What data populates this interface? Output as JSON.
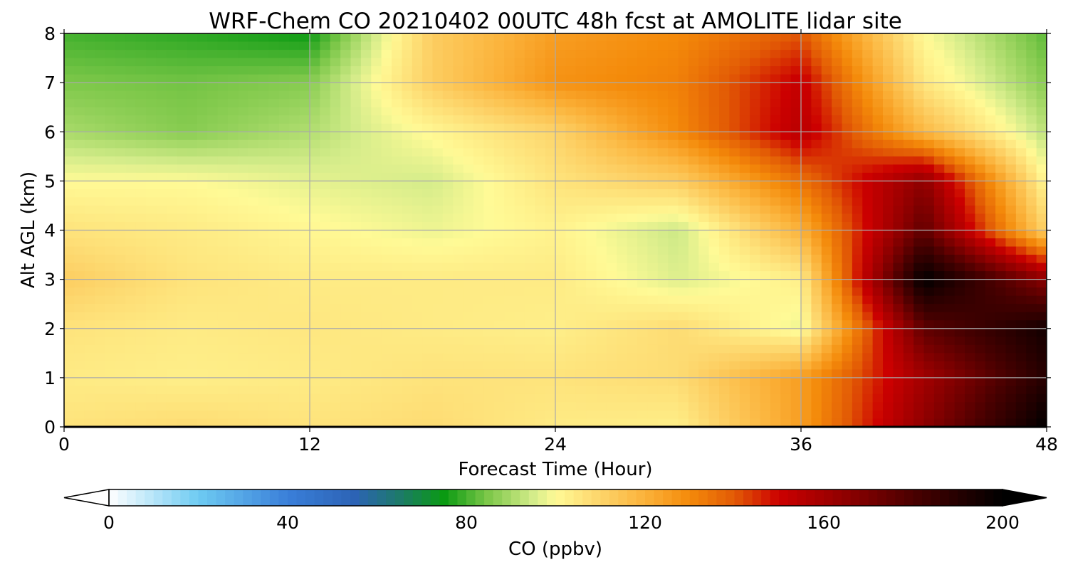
{
  "chart_data": {
    "type": "heatmap",
    "title": "WRF-Chem CO  20210402 00UTC 48h fcst at AMOLITE lidar site",
    "xlabel": "Forecast Time (Hour)",
    "ylabel": "Alt AGL (km)",
    "xlim": [
      0,
      48
    ],
    "ylim": [
      0,
      8
    ],
    "x_ticks": [
      "0",
      "12",
      "24",
      "36",
      "48"
    ],
    "y_ticks": [
      "0",
      "1",
      "2",
      "3",
      "4",
      "5",
      "6",
      "7",
      "8"
    ],
    "grid": true,
    "x": [
      0,
      6,
      12,
      18,
      24,
      30,
      36,
      42,
      48
    ],
    "y": [
      0,
      1,
      2,
      3,
      4,
      5,
      6,
      7,
      8
    ],
    "z": [
      [
        106,
        108,
        106,
        108,
        104,
        103,
        125,
        165,
        200
      ],
      [
        104,
        103,
        104,
        106,
        106,
        108,
        125,
        160,
        190
      ],
      [
        106,
        104,
        105,
        104,
        103,
        108,
        98,
        175,
        195
      ],
      [
        112,
        106,
        104,
        104,
        104,
        96,
        103,
        200,
        165
      ],
      [
        106,
        104,
        101,
        98,
        102,
        94,
        120,
        175,
        110
      ],
      [
        100,
        100,
        97,
        95,
        106,
        112,
        135,
        165,
        100
      ],
      [
        90,
        86,
        91,
        101,
        110,
        130,
        155,
        118,
        92
      ],
      [
        85,
        84,
        86,
        112,
        128,
        132,
        152,
        105,
        86
      ],
      [
        80,
        78,
        75,
        112,
        125,
        130,
        140,
        100,
        82
      ]
    ],
    "colorbar": {
      "label": "CO  (ppbv)",
      "ticks": [
        "0",
        "40",
        "80",
        "120",
        "160",
        "200"
      ],
      "range": [
        0,
        200
      ],
      "extend": "both",
      "stops": [
        {
          "v": 0,
          "c": "#ffffff"
        },
        {
          "v": 20,
          "c": "#6ecbf2"
        },
        {
          "v": 40,
          "c": "#3a7fd9"
        },
        {
          "v": 55,
          "c": "#2c63b5"
        },
        {
          "v": 65,
          "c": "#1d7a6a"
        },
        {
          "v": 75,
          "c": "#0a9a12"
        },
        {
          "v": 85,
          "c": "#7ec84a"
        },
        {
          "v": 95,
          "c": "#d4ec8a"
        },
        {
          "v": 100,
          "c": "#fffa96"
        },
        {
          "v": 110,
          "c": "#fdd46a"
        },
        {
          "v": 120,
          "c": "#fbb23a"
        },
        {
          "v": 130,
          "c": "#f48a0a"
        },
        {
          "v": 140,
          "c": "#e25a05"
        },
        {
          "v": 150,
          "c": "#cc0000"
        },
        {
          "v": 165,
          "c": "#8e0000"
        },
        {
          "v": 180,
          "c": "#4a0000"
        },
        {
          "v": 200,
          "c": "#000000"
        }
      ]
    }
  }
}
